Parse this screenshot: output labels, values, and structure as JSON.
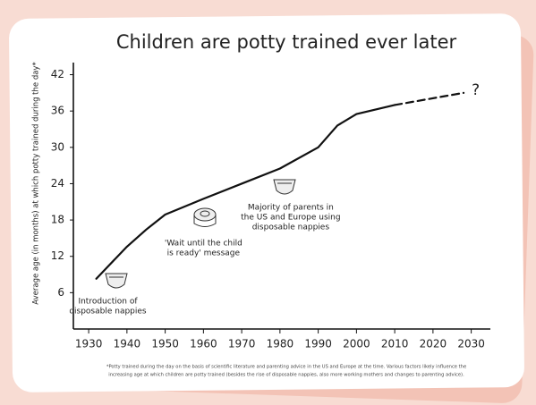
{
  "chart_data": {
    "type": "line",
    "title": "Children are potty trained ever later",
    "ylabel": "Average age (in months) at which potty trained during the day*",
    "x": [
      1932,
      1935,
      1940,
      1945,
      1950,
      1960,
      1970,
      1980,
      1990,
      1995,
      2000,
      2010,
      2028
    ],
    "series": [
      {
        "style": "solid",
        "color": "#111111",
        "values": [
          8.3,
          10.3,
          13.6,
          16.4,
          18.9,
          21.5,
          24,
          26.5,
          30,
          33.6,
          35.5,
          37,
          null
        ]
      },
      {
        "style": "dashed",
        "color": "#111111",
        "values": [
          null,
          null,
          null,
          null,
          null,
          null,
          null,
          null,
          null,
          null,
          null,
          37,
          39
        ]
      }
    ],
    "end_marker": "?",
    "xlim": [
      1926,
      2035
    ],
    "xticks": [
      1930,
      1940,
      1950,
      1960,
      1970,
      1980,
      1990,
      2000,
      2010,
      2020,
      2030
    ],
    "ylim": [
      0,
      44
    ],
    "yticks": [
      6,
      12,
      18,
      24,
      30,
      36,
      42
    ],
    "annotations": [
      {
        "x": 1935,
        "lines": [
          "Introduction of",
          "disposable nappies"
        ]
      },
      {
        "x": 1960,
        "lines": [
          "'Wait until the child",
          "is ready' message"
        ]
      },
      {
        "x": 1980,
        "lines": [
          "Majority of parents in",
          "the US and Europe using",
          "disposable nappies"
        ]
      }
    ],
    "footnote": [
      "*Potty trained during the day on the basis of scientific literature and parenting advice in the US and Europe at the time. Various factors likely influence the",
      "increasing age at which children are potty trained (besides the rise of disposable nappies, also more working mothers and changes to parenting advice)."
    ]
  }
}
